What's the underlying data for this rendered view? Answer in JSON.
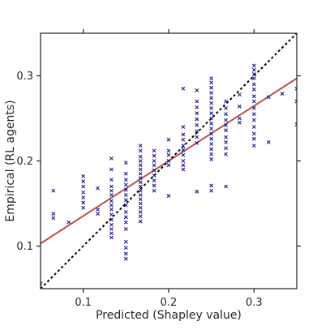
{
  "chart_data": {
    "type": "scatter",
    "xlabel": "Predicted (Shapley value)",
    "ylabel": "Empirical (RL agents)",
    "xlim": [
      0.05,
      0.35
    ],
    "ylim": [
      0.05,
      0.35
    ],
    "x_ticks": [
      {
        "value": 0.1,
        "label": "0.1"
      },
      {
        "value": 0.2,
        "label": "0.2"
      },
      {
        "value": 0.3,
        "label": "0.3"
      }
    ],
    "y_ticks": [
      {
        "value": 0.1,
        "label": "0.1"
      },
      {
        "value": 0.2,
        "label": "0.2"
      },
      {
        "value": 0.3,
        "label": "0.3"
      }
    ],
    "grid": false,
    "colors": {
      "points": "#1a1a8c",
      "fit_line": "#c0504d",
      "identity_line": "#000000",
      "axes": "#262626"
    },
    "fit_line": {
      "x": [
        0.05,
        0.35
      ],
      "y": [
        0.103,
        0.297
      ]
    },
    "identity_line": {
      "x": [
        0.05,
        0.35
      ],
      "y": [
        0.05,
        0.35
      ]
    },
    "series": [
      {
        "points": [
          [
            0.05,
            0.056
          ],
          [
            0.065,
            0.165
          ],
          [
            0.065,
            0.138
          ],
          [
            0.065,
            0.133
          ],
          [
            0.083,
            0.128
          ],
          [
            0.1,
            0.182
          ],
          [
            0.1,
            0.176
          ],
          [
            0.1,
            0.17
          ],
          [
            0.1,
            0.163
          ],
          [
            0.1,
            0.157
          ],
          [
            0.1,
            0.151
          ],
          [
            0.1,
            0.145
          ],
          [
            0.117,
            0.168
          ],
          [
            0.117,
            0.143
          ],
          [
            0.117,
            0.138
          ],
          [
            0.133,
            0.203
          ],
          [
            0.133,
            0.19
          ],
          [
            0.133,
            0.178
          ],
          [
            0.133,
            0.17
          ],
          [
            0.133,
            0.165
          ],
          [
            0.133,
            0.16
          ],
          [
            0.133,
            0.153
          ],
          [
            0.133,
            0.148
          ],
          [
            0.133,
            0.143
          ],
          [
            0.133,
            0.137
          ],
          [
            0.133,
            0.131
          ],
          [
            0.133,
            0.125
          ],
          [
            0.133,
            0.12
          ],
          [
            0.133,
            0.115
          ],
          [
            0.133,
            0.11
          ],
          [
            0.15,
            0.198
          ],
          [
            0.15,
            0.185
          ],
          [
            0.15,
            0.178
          ],
          [
            0.15,
            0.172
          ],
          [
            0.15,
            0.166
          ],
          [
            0.15,
            0.16
          ],
          [
            0.15,
            0.154
          ],
          [
            0.15,
            0.148
          ],
          [
            0.15,
            0.14
          ],
          [
            0.15,
            0.134
          ],
          [
            0.15,
            0.128
          ],
          [
            0.15,
            0.12
          ],
          [
            0.15,
            0.105
          ],
          [
            0.15,
            0.098
          ],
          [
            0.15,
            0.091
          ],
          [
            0.15,
            0.085
          ],
          [
            0.167,
            0.218
          ],
          [
            0.167,
            0.212
          ],
          [
            0.167,
            0.205
          ],
          [
            0.167,
            0.2
          ],
          [
            0.167,
            0.195
          ],
          [
            0.167,
            0.19
          ],
          [
            0.167,
            0.185
          ],
          [
            0.167,
            0.18
          ],
          [
            0.167,
            0.175
          ],
          [
            0.167,
            0.17
          ],
          [
            0.167,
            0.165
          ],
          [
            0.167,
            0.16
          ],
          [
            0.167,
            0.155
          ],
          [
            0.167,
            0.15
          ],
          [
            0.167,
            0.145
          ],
          [
            0.167,
            0.14
          ],
          [
            0.167,
            0.135
          ],
          [
            0.167,
            0.129
          ],
          [
            0.183,
            0.212
          ],
          [
            0.183,
            0.206
          ],
          [
            0.183,
            0.2
          ],
          [
            0.183,
            0.195
          ],
          [
            0.183,
            0.189
          ],
          [
            0.183,
            0.183
          ],
          [
            0.183,
            0.177
          ],
          [
            0.183,
            0.171
          ],
          [
            0.183,
            0.165
          ],
          [
            0.2,
            0.225
          ],
          [
            0.2,
            0.212
          ],
          [
            0.2,
            0.207
          ],
          [
            0.2,
            0.2
          ],
          [
            0.2,
            0.195
          ],
          [
            0.2,
            0.159
          ],
          [
            0.217,
            0.285
          ],
          [
            0.217,
            0.24
          ],
          [
            0.217,
            0.231
          ],
          [
            0.217,
            0.225
          ],
          [
            0.217,
            0.218
          ],
          [
            0.217,
            0.213
          ],
          [
            0.217,
            0.207
          ],
          [
            0.217,
            0.2
          ],
          [
            0.217,
            0.195
          ],
          [
            0.217,
            0.19
          ],
          [
            0.233,
            0.283
          ],
          [
            0.233,
            0.27
          ],
          [
            0.233,
            0.263
          ],
          [
            0.233,
            0.256
          ],
          [
            0.233,
            0.249
          ],
          [
            0.233,
            0.242
          ],
          [
            0.233,
            0.235
          ],
          [
            0.233,
            0.228
          ],
          [
            0.233,
            0.221
          ],
          [
            0.233,
            0.164
          ],
          [
            0.25,
            0.297
          ],
          [
            0.25,
            0.292
          ],
          [
            0.25,
            0.286
          ],
          [
            0.25,
            0.28
          ],
          [
            0.25,
            0.274
          ],
          [
            0.25,
            0.268
          ],
          [
            0.25,
            0.262
          ],
          [
            0.25,
            0.256
          ],
          [
            0.25,
            0.25
          ],
          [
            0.25,
            0.244
          ],
          [
            0.25,
            0.238
          ],
          [
            0.25,
            0.232
          ],
          [
            0.25,
            0.226
          ],
          [
            0.25,
            0.22
          ],
          [
            0.25,
            0.214
          ],
          [
            0.25,
            0.208
          ],
          [
            0.25,
            0.202
          ],
          [
            0.25,
            0.171
          ],
          [
            0.25,
            0.165
          ],
          [
            0.267,
            0.27
          ],
          [
            0.267,
            0.262
          ],
          [
            0.267,
            0.255
          ],
          [
            0.267,
            0.248
          ],
          [
            0.267,
            0.242
          ],
          [
            0.267,
            0.236
          ],
          [
            0.267,
            0.228
          ],
          [
            0.267,
            0.222
          ],
          [
            0.267,
            0.215
          ],
          [
            0.267,
            0.208
          ],
          [
            0.267,
            0.17
          ],
          [
            0.283,
            0.278
          ],
          [
            0.283,
            0.264
          ],
          [
            0.283,
            0.25
          ],
          [
            0.283,
            0.245
          ],
          [
            0.3,
            0.312
          ],
          [
            0.3,
            0.307
          ],
          [
            0.3,
            0.302
          ],
          [
            0.3,
            0.297
          ],
          [
            0.3,
            0.29
          ],
          [
            0.3,
            0.284
          ],
          [
            0.3,
            0.276
          ],
          [
            0.3,
            0.27
          ],
          [
            0.3,
            0.262
          ],
          [
            0.3,
            0.255
          ],
          [
            0.3,
            0.248
          ],
          [
            0.3,
            0.24
          ],
          [
            0.3,
            0.232
          ],
          [
            0.3,
            0.226
          ],
          [
            0.3,
            0.218
          ],
          [
            0.317,
            0.222
          ],
          [
            0.317,
            0.275
          ],
          [
            0.333,
            0.279
          ],
          [
            0.35,
            0.285
          ],
          [
            0.35,
            0.27
          ],
          [
            0.35,
            0.243
          ]
        ]
      }
    ]
  }
}
